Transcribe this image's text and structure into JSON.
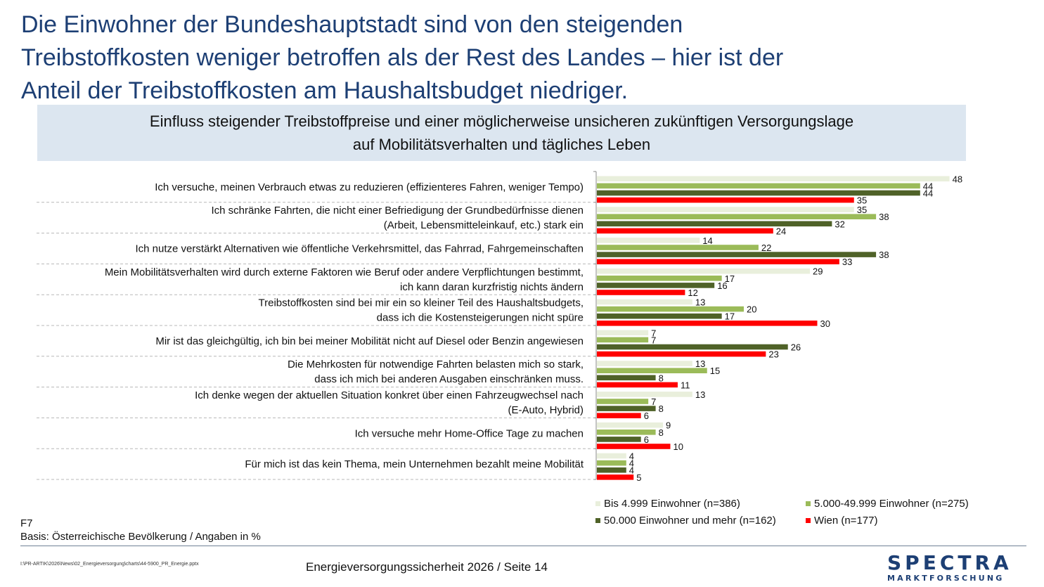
{
  "headline": {
    "line1": "Die Einwohner der Bundeshauptstadt sind von den steigenden",
    "line2": "Treibstoffkosten weniger betroffen als der Rest des Landes – hier ist der",
    "line3": "Anteil der Treibstoffkosten am Haushaltsbudget niedriger."
  },
  "subtitle": {
    "line1": "Einfluss steigender Treibstoffpreise und einer möglicherweise unsicheren zukünftigen Versorgungslage",
    "line2": "auf Mobilitätsverhalten und tägliches Leben"
  },
  "chart_data": {
    "type": "bar",
    "orientation": "horizontal",
    "categories": [
      [
        "Ich versuche, meinen Verbrauch etwas zu reduzieren (effizienteres Fahren, weniger Tempo)"
      ],
      [
        "Ich schränke Fahrten, die nicht einer Befriedigung der Grundbedürfnisse dienen",
        "(Arbeit, Lebensmitteleinkauf, etc.) stark ein"
      ],
      [
        "Ich nutze verstärkt Alternativen wie öffentliche Verkehrsmittel, das Fahrrad, Fahrgemeinschaften"
      ],
      [
        "Mein Mobilitätsverhalten wird durch externe Faktoren wie Beruf oder andere Verpflichtungen bestimmt,",
        "ich kann daran kurzfristig nichts ändern"
      ],
      [
        "Treibstoffkosten sind bei mir ein so kleiner Teil des Haushaltsbudgets,",
        "dass ich die Kostensteigerungen nicht spüre"
      ],
      [
        "Mir ist das gleichgültig, ich bin bei meiner Mobilität nicht auf Diesel oder Benzin angewiesen"
      ],
      [
        "Die Mehrkosten für notwendige Fahrten belasten mich so stark,",
        "dass ich mich bei anderen Ausgaben einschränken muss."
      ],
      [
        "Ich denke wegen der aktuellen Situation konkret über einen Fahrzeugwechsel nach",
        "(E-Auto, Hybrid)"
      ],
      [
        "Ich versuche mehr Home-Office Tage zu machen"
      ],
      [
        "Für mich ist das kein Thema, mein Unternehmen bezahlt meine Mobilität"
      ]
    ],
    "series": [
      {
        "name": "Bis 4.999 Einwohner (n=386)",
        "color": "#e9efdc",
        "values": [
          48,
          35,
          14,
          29,
          13,
          7,
          13,
          13,
          9,
          4
        ]
      },
      {
        "name": "5.000-49.999 Einwohner (n=275)",
        "color": "#9bbb59",
        "values": [
          44,
          38,
          22,
          17,
          20,
          7,
          15,
          7,
          8,
          4
        ]
      },
      {
        "name": "50.000 Einwohner und mehr (n=162)",
        "color": "#4f6228",
        "values": [
          44,
          32,
          38,
          16,
          17,
          26,
          8,
          8,
          6,
          4
        ]
      },
      {
        "name": "Wien (n=177)",
        "color": "#ff0000",
        "values": [
          35,
          24,
          33,
          12,
          30,
          23,
          11,
          6,
          10,
          5
        ]
      }
    ],
    "xlim": [
      0,
      50
    ],
    "unit": "%"
  },
  "notes": {
    "code": "F7",
    "basis": "Basis: Österreichische Bevölkerung / Angaben in %"
  },
  "footer": {
    "path": "I:\\PR-ARTIK\\2026\\News\\02_Energieversorgung\\charts\\44-5900_PR_Energie.pptx",
    "center": "Energieversorgungssicherheit 2026  /  Seite 14",
    "logo_main": "SPECTRA",
    "logo_sub": "MARKTFORSCHUNG"
  }
}
